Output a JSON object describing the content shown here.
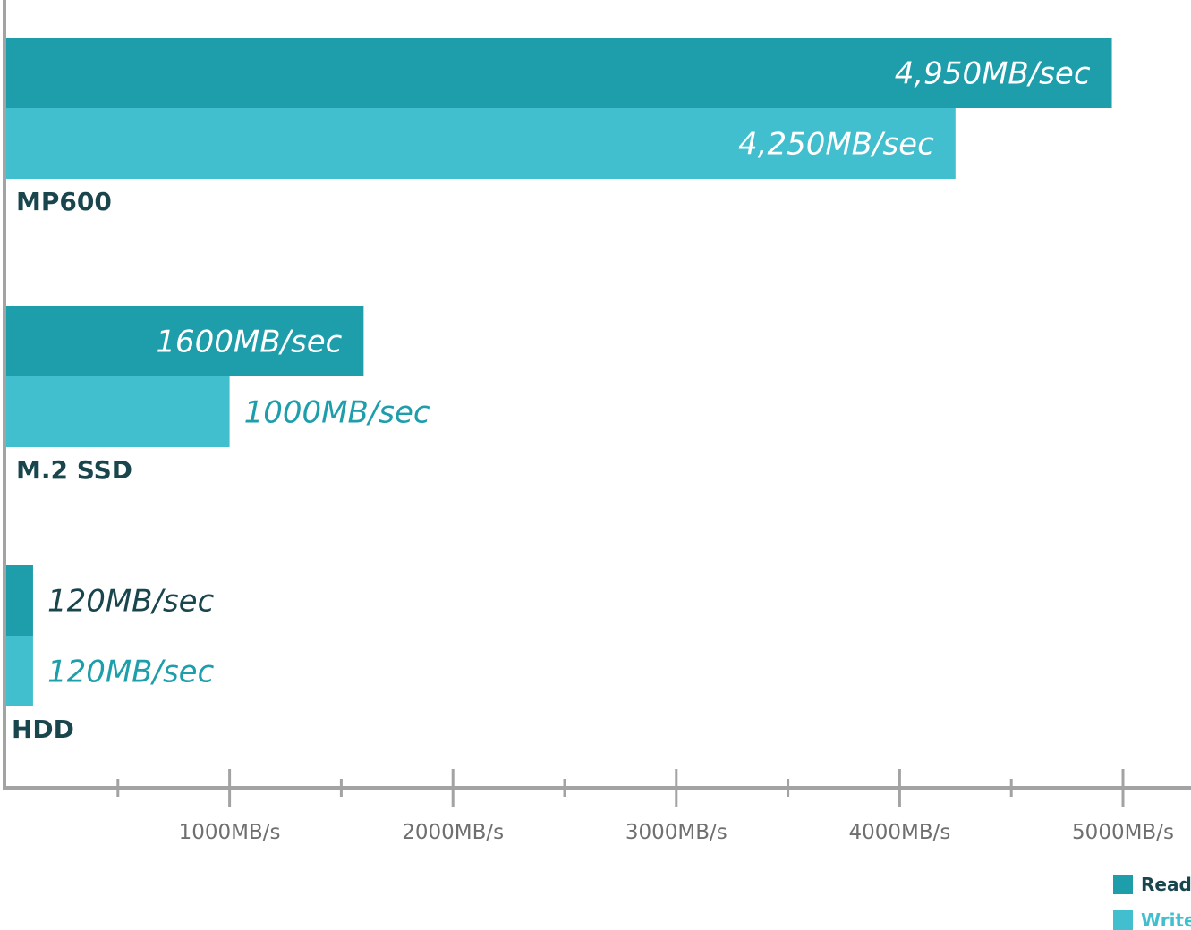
{
  "colors": {
    "read": "#1e9eab",
    "write": "#41bfce",
    "category_text": "#19454d",
    "value_on_bar": "#ffffff",
    "axis": "#a3a3a3",
    "tick_text": "#6f6f6f"
  },
  "chart_data": {
    "type": "bar",
    "orientation": "horizontal",
    "categories": [
      "MP600",
      "M.2 SSD",
      "HDD"
    ],
    "series": [
      {
        "name": "Read",
        "values": [
          4950,
          1600,
          120
        ],
        "labels": [
          "4,950MB/sec",
          "1600MB/sec",
          "120MB/sec"
        ]
      },
      {
        "name": "Write",
        "values": [
          4250,
          1000,
          120
        ],
        "labels": [
          "4,250MB/sec",
          "1000MB/sec",
          "120MB/sec"
        ]
      }
    ],
    "xlim": [
      0,
      5000
    ],
    "x_ticks": [
      1000,
      2000,
      3000,
      4000,
      5000
    ],
    "x_minor_ticks": [
      500,
      1500,
      2500,
      3500,
      4500
    ],
    "x_tick_labels": [
      "1000MB/s",
      "2000MB/s",
      "3000MB/s",
      "4000MB/s",
      "5000MB/s"
    ],
    "legend": {
      "position": "bottom-right",
      "entries": [
        "Read",
        "Write"
      ]
    },
    "grid": false
  }
}
